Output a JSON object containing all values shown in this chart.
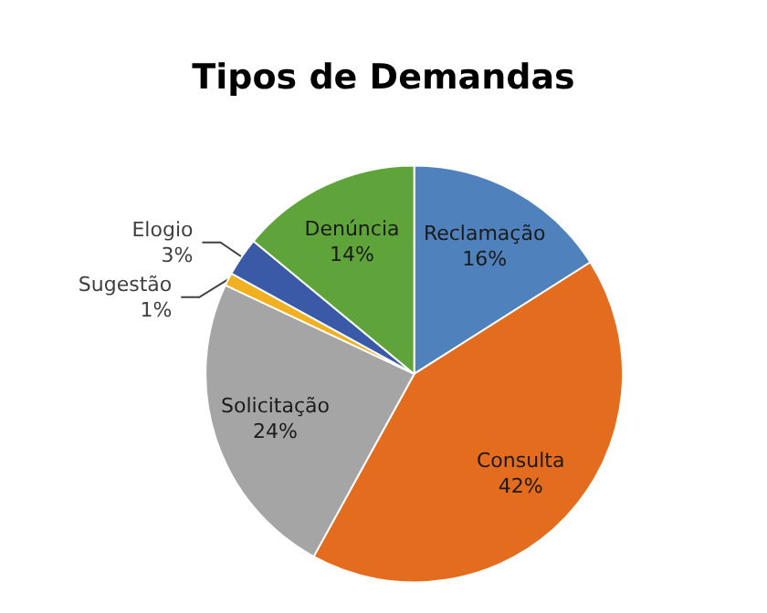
{
  "chart_data": {
    "type": "pie",
    "title": "Tipos de Demandas",
    "categories": [
      "Reclamação",
      "Consulta",
      "Solicitação",
      "Sugestão",
      "Elogio",
      "Denúncia"
    ],
    "values": [
      16,
      42,
      24,
      1,
      3,
      14
    ],
    "value_labels": [
      "16%",
      "42%",
      "24%",
      "1%",
      "3%",
      "14%"
    ],
    "colors": [
      "#4f81bd",
      "#e46c1e",
      "#a5a5a5",
      "#f0b020",
      "#3a5aa8",
      "#5ea43a"
    ],
    "legend": false
  }
}
